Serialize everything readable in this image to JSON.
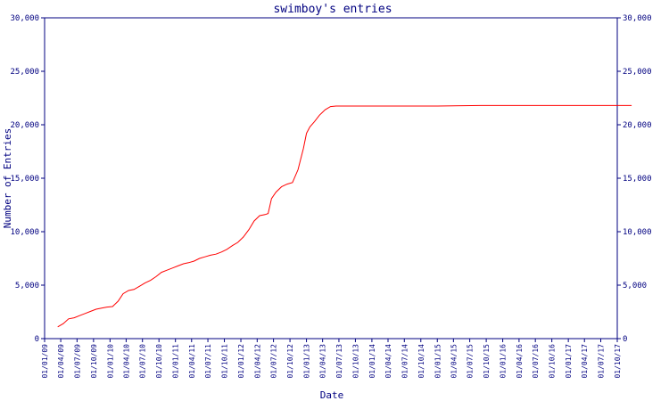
{
  "chart_data": {
    "type": "line",
    "title": "swimboy's entries",
    "xlabel": "Date",
    "ylabel": "Number of Entries",
    "ylim": [
      0,
      30000
    ],
    "y_ticks": [
      0,
      5000,
      10000,
      15000,
      20000,
      25000,
      30000
    ],
    "y_tick_labels": [
      "0",
      "5,000",
      "10,000",
      "15,000",
      "20,000",
      "25,000",
      "30,000"
    ],
    "x_ticks": [
      "01/01/09",
      "01/04/09",
      "01/07/09",
      "01/10/09",
      "01/01/10",
      "01/04/10",
      "01/07/10",
      "01/10/10",
      "01/01/11",
      "01/04/11",
      "01/07/11",
      "01/10/11",
      "01/01/12",
      "01/04/12",
      "01/07/12",
      "01/10/12",
      "01/01/13",
      "01/04/13",
      "01/07/13",
      "01/10/13",
      "01/01/14",
      "01/04/14",
      "01/07/14",
      "01/10/14",
      "01/01/15",
      "01/04/15",
      "01/07/15",
      "01/10/15",
      "01/01/16",
      "01/04/16",
      "01/07/16",
      "01/10/16",
      "01/01/17",
      "01/04/17",
      "01/07/17",
      "01/10/17"
    ],
    "right_axis": true,
    "grid": false,
    "line_color": "#ff0000",
    "axis_color": "#000080",
    "series": [
      {
        "x": [
          "2009-03-15",
          "2009-04-15",
          "2009-05-15",
          "2009-06-15",
          "2009-07-15",
          "2009-08-15",
          "2009-09-15",
          "2009-10-15",
          "2009-11-15",
          "2009-12-15",
          "2010-01-15",
          "2010-02-15",
          "2010-03-15",
          "2010-04-15",
          "2010-05-15",
          "2010-06-15",
          "2010-07-15",
          "2010-08-15",
          "2010-09-15",
          "2010-10-15",
          "2010-11-15",
          "2010-12-15",
          "2011-01-15",
          "2011-02-15",
          "2011-03-15",
          "2011-04-15",
          "2011-05-15",
          "2011-06-15",
          "2011-07-15",
          "2011-08-15",
          "2011-09-15",
          "2011-10-15",
          "2011-11-15",
          "2011-12-15",
          "2012-01-15",
          "2012-02-15",
          "2012-03-15",
          "2012-04-15",
          "2012-05-15",
          "2012-06-01",
          "2012-06-20",
          "2012-07-15",
          "2012-08-15",
          "2012-09-15",
          "2012-10-15",
          "2012-11-15",
          "2012-12-15",
          "2013-01-01",
          "2013-01-20",
          "2013-02-15",
          "2013-03-15",
          "2013-04-15",
          "2013-05-15",
          "2013-06-15",
          "2013-07-01",
          "2014-07-01",
          "2015-01-01",
          "2015-09-01",
          "2016-06-01",
          "2017-01-01",
          "2017-07-01",
          "2017-12-20"
        ],
        "values": [
          1100,
          1400,
          1850,
          1950,
          2150,
          2350,
          2550,
          2750,
          2850,
          2950,
          3000,
          3500,
          4200,
          4500,
          4600,
          4900,
          5200,
          5450,
          5800,
          6200,
          6400,
          6600,
          6800,
          7000,
          7100,
          7250,
          7500,
          7650,
          7800,
          7900,
          8100,
          8350,
          8700,
          9000,
          9500,
          10200,
          11000,
          11500,
          11600,
          11700,
          13100,
          13700,
          14200,
          14450,
          14600,
          15800,
          17800,
          19200,
          19800,
          20300,
          20900,
          21400,
          21700,
          21750,
          21750,
          21750,
          21750,
          21800,
          21800,
          21800,
          21800,
          21800
        ]
      }
    ]
  }
}
